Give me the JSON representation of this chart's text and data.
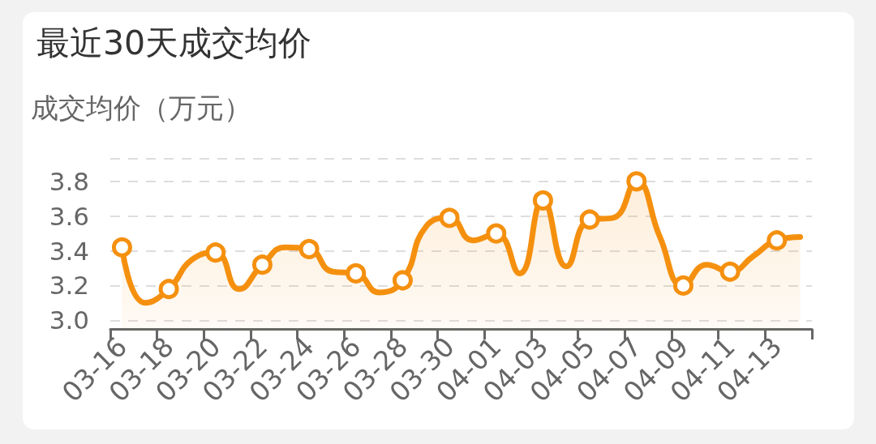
{
  "chart_data": {
    "type": "area",
    "title": "最近30天成交均价",
    "ylabel": "成交均价（万元）",
    "categories": [
      "03-16",
      null,
      "03-18",
      null,
      "03-20",
      null,
      "03-22",
      null,
      "03-24",
      null,
      "03-26",
      null,
      "03-28",
      null,
      "03-30",
      null,
      "04-01",
      null,
      "04-03",
      null,
      "04-05",
      null,
      "04-07",
      null,
      "04-09",
      null,
      "04-11",
      null,
      "04-13",
      null
    ],
    "series": [
      {
        "color": "#f5900f",
        "values": [
          3.42,
          3.1,
          3.18,
          3.35,
          3.39,
          3.18,
          3.32,
          3.42,
          3.41,
          3.28,
          3.27,
          3.16,
          3.23,
          3.54,
          3.59,
          3.46,
          3.5,
          3.27,
          3.69,
          3.31,
          3.58,
          3.59,
          3.8,
          3.48,
          3.2,
          3.32,
          3.28,
          3.37,
          3.46,
          3.48
        ]
      }
    ],
    "ylim": [
      2.95,
      3.93
    ],
    "yticks": [
      {
        "value": 3,
        "label": "3.0"
      },
      3.2,
      3.4,
      3.6,
      3.8,
      {
        "value": 3.93,
        "label": null
      }
    ],
    "grid": "y",
    "marker": "circle",
    "line_style": "solid"
  }
}
